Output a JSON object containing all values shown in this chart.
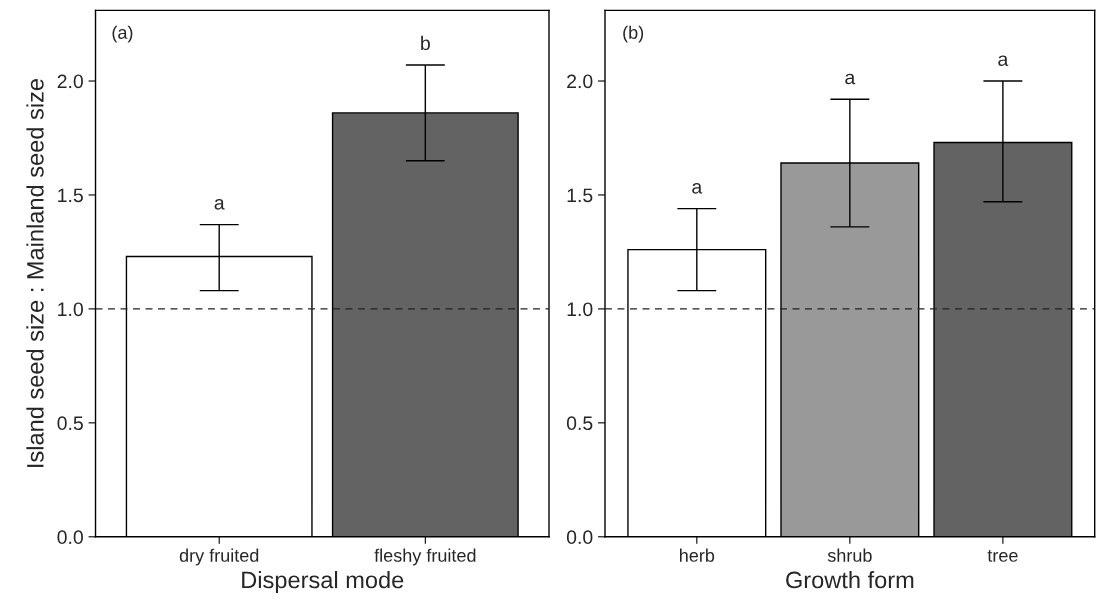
{
  "chart_data": [
    {
      "type": "bar",
      "categories": [
        "dry fruited",
        "fleshy fruited"
      ],
      "values": [
        1.23,
        1.86
      ],
      "colors": [
        "#ffffff",
        "#636363"
      ],
      "errors": [
        [
          1.08,
          1.37
        ],
        [
          1.65,
          2.07
        ]
      ],
      "xlabel": "Dispersal mode",
      "ylabel": "Island seed size : Mainland seed size",
      "ylim": [
        0,
        2.31
      ],
      "yticks": [
        {
          "value": 0,
          "label": "0.0"
        },
        {
          "value": 0.5,
          "label": "0.5"
        },
        {
          "value": 1,
          "label": "1.0"
        },
        {
          "value": 1.5,
          "label": "1.5"
        },
        {
          "value": 2,
          "label": "2.0"
        }
      ],
      "ref_lines": [
        {
          "axis": "y",
          "value": 1,
          "line_style": "dashed"
        }
      ],
      "annotations": [
        "(a)",
        "a",
        "b"
      ],
      "grid": false,
      "legend": false
    },
    {
      "type": "bar",
      "categories": [
        "herb",
        "shrub",
        "tree"
      ],
      "values": [
        1.26,
        1.64,
        1.73
      ],
      "colors": [
        "#ffffff",
        "#999999",
        "#636363"
      ],
      "errors": [
        [
          1.08,
          1.44
        ],
        [
          1.36,
          1.92
        ],
        [
          1.47,
          2.0
        ]
      ],
      "xlabel": "Growth form",
      "ylim": [
        0,
        2.31
      ],
      "yticks": [
        {
          "value": 0,
          "label": "0.0"
        },
        {
          "value": 0.5,
          "label": "0.5"
        },
        {
          "value": 1,
          "label": "1.0"
        },
        {
          "value": 1.5,
          "label": "1.5"
        },
        {
          "value": 2,
          "label": "2.0"
        }
      ],
      "ref_lines": [
        {
          "axis": "y",
          "value": 1,
          "line_style": "dashed"
        }
      ],
      "annotations": [
        "(b)",
        "a",
        "a",
        "a"
      ],
      "grid": false,
      "legend": false
    }
  ]
}
